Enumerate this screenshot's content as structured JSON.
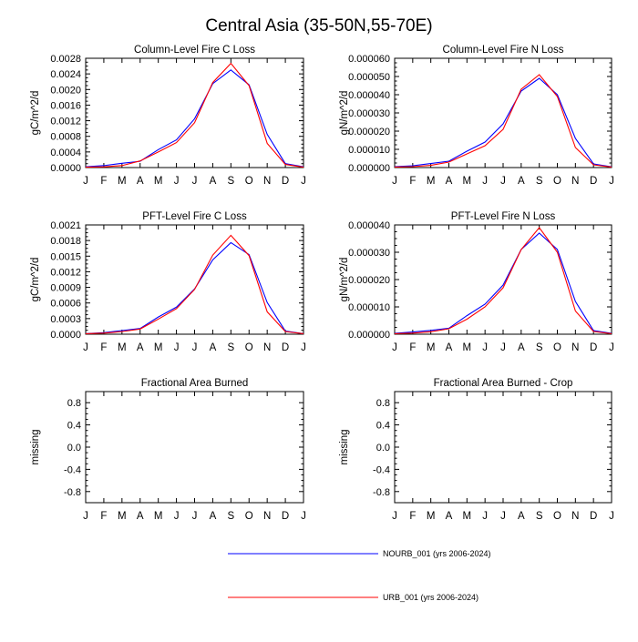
{
  "figure": {
    "title": "Central Asia (35-50N,55-70E)"
  },
  "legend": [
    {
      "name": "NOURB_001 (yrs 2006-2024)",
      "color": "#0000ff"
    },
    {
      "name": "URB_001 (yrs 2006-2024)",
      "color": "#ff0000"
    }
  ],
  "chart_data": [
    {
      "type": "line",
      "title": "Column-Level Fire C Loss",
      "ylabel": "gC/m^2/d",
      "xlabel": "",
      "categories": [
        "J",
        "F",
        "M",
        "A",
        "M",
        "J",
        "J",
        "A",
        "S",
        "O",
        "N",
        "D",
        "J"
      ],
      "ylim": [
        0,
        0.0028
      ],
      "yticks": [
        "0.0000",
        "0.0004",
        "0.0008",
        "0.0012",
        "0.0016",
        "0.0020",
        "0.0024",
        "0.0028"
      ],
      "series": [
        {
          "name": "NOURB_001 (yrs 2006-2024)",
          "color": "#0000ff",
          "values": [
            2e-05,
            5e-05,
            0.00011,
            0.00016,
            0.00046,
            0.00071,
            0.00125,
            0.00215,
            0.0025,
            0.00212,
            0.00085,
            0.0001,
            2e-05
          ]
        },
        {
          "name": "URB_001 (yrs 2006-2024)",
          "color": "#ff0000",
          "values": [
            1e-05,
            2e-05,
            5e-05,
            0.00017,
            0.0004,
            0.00064,
            0.00115,
            0.00218,
            0.00267,
            0.0021,
            0.00062,
            8e-05,
            1e-05
          ]
        }
      ]
    },
    {
      "type": "line",
      "title": "Column-Level Fire N Loss",
      "ylabel": "gN/m^2/d",
      "xlabel": "",
      "categories": [
        "J",
        "F",
        "M",
        "A",
        "M",
        "J",
        "J",
        "A",
        "S",
        "O",
        "N",
        "D",
        "J"
      ],
      "ylim": [
        0,
        6e-05
      ],
      "yticks": [
        "0.000000",
        "0.000010",
        "0.000020",
        "0.000030",
        "0.000040",
        "0.000050",
        "0.000060"
      ],
      "series": [
        {
          "name": "NOURB_001 (yrs 2006-2024)",
          "color": "#0000ff",
          "values": [
            5e-07,
            1e-06,
            2.2e-06,
            3.5e-06,
            9e-06,
            1.4e-05,
            2.4e-05,
            4.2e-05,
            4.9e-05,
            4e-05,
            1.6e-05,
            2e-06,
            4e-07
          ]
        },
        {
          "name": "URB_001 (yrs 2006-2024)",
          "color": "#ff0000",
          "values": [
            3e-07,
            5e-07,
            1.2e-06,
            3e-06,
            7.5e-06,
            1.2e-05,
            2.1e-05,
            4.3e-05,
            5.1e-05,
            3.9e-05,
            1.1e-05,
            1.5e-06,
            3e-07
          ]
        }
      ]
    },
    {
      "type": "line",
      "title": "PFT-Level Fire C Loss",
      "ylabel": "gC/m^2/d",
      "xlabel": "",
      "categories": [
        "J",
        "F",
        "M",
        "A",
        "M",
        "J",
        "J",
        "A",
        "S",
        "O",
        "N",
        "D",
        "J"
      ],
      "ylim": [
        0,
        0.0021
      ],
      "yticks": [
        "0.0000",
        "0.0003",
        "0.0006",
        "0.0009",
        "0.0012",
        "0.0015",
        "0.0018",
        "0.0021"
      ],
      "series": [
        {
          "name": "NOURB_001 (yrs 2006-2024)",
          "color": "#0000ff",
          "values": [
            1e-05,
            3e-05,
            7e-05,
            0.00011,
            0.00033,
            0.00052,
            0.00087,
            0.00143,
            0.00176,
            0.00153,
            0.00061,
            6e-05,
            1e-05
          ]
        },
        {
          "name": "URB_001 (yrs 2006-2024)",
          "color": "#ff0000",
          "values": [
            1e-05,
            2e-05,
            5e-05,
            0.0001,
            0.00029,
            0.00049,
            0.00086,
            0.00152,
            0.0019,
            0.00151,
            0.00043,
            5e-05,
            1e-05
          ]
        }
      ]
    },
    {
      "type": "line",
      "title": "PFT-Level Fire N Loss",
      "ylabel": "gN/m^2/d",
      "xlabel": "",
      "categories": [
        "J",
        "F",
        "M",
        "A",
        "M",
        "J",
        "J",
        "A",
        "S",
        "O",
        "N",
        "D",
        "J"
      ],
      "ylim": [
        0,
        4e-05
      ],
      "yticks": [
        "0.000000",
        "0.000010",
        "0.000020",
        "0.000030",
        "0.000040"
      ],
      "series": [
        {
          "name": "NOURB_001 (yrs 2006-2024)",
          "color": "#0000ff",
          "values": [
            3e-07,
            8e-07,
            1.4e-06,
            2.2e-06,
            6.8e-06,
            1.1e-05,
            1.8e-05,
            3.1e-05,
            3.7e-05,
            3.1e-05,
            1.2e-05,
            1.3e-06,
            3e-07
          ]
        },
        {
          "name": "URB_001 (yrs 2006-2024)",
          "color": "#ff0000",
          "values": [
            2e-07,
            4e-07,
            9e-07,
            2e-06,
            5.5e-06,
            1e-05,
            1.7e-05,
            3.1e-05,
            3.9e-05,
            3e-05,
            8.5e-06,
            1e-06,
            2e-07
          ]
        }
      ]
    },
    {
      "type": "line",
      "title": "Fractional Area Burned",
      "ylabel": "missing",
      "xlabel": "",
      "categories": [
        "J",
        "F",
        "M",
        "A",
        "M",
        "J",
        "J",
        "A",
        "S",
        "O",
        "N",
        "D",
        "J"
      ],
      "ylim": [
        -1,
        1
      ],
      "yticks": [
        "-0.8",
        "-0.4",
        "0.0",
        "0.4",
        "0.8"
      ],
      "series": []
    },
    {
      "type": "line",
      "title": "Fractional Area Burned - Crop",
      "ylabel": "missing",
      "xlabel": "",
      "categories": [
        "J",
        "F",
        "M",
        "A",
        "M",
        "J",
        "J",
        "A",
        "S",
        "O",
        "N",
        "D",
        "J"
      ],
      "ylim": [
        -1,
        1
      ],
      "yticks": [
        "-0.8",
        "-0.4",
        "0.0",
        "0.4",
        "0.8"
      ],
      "series": []
    }
  ]
}
